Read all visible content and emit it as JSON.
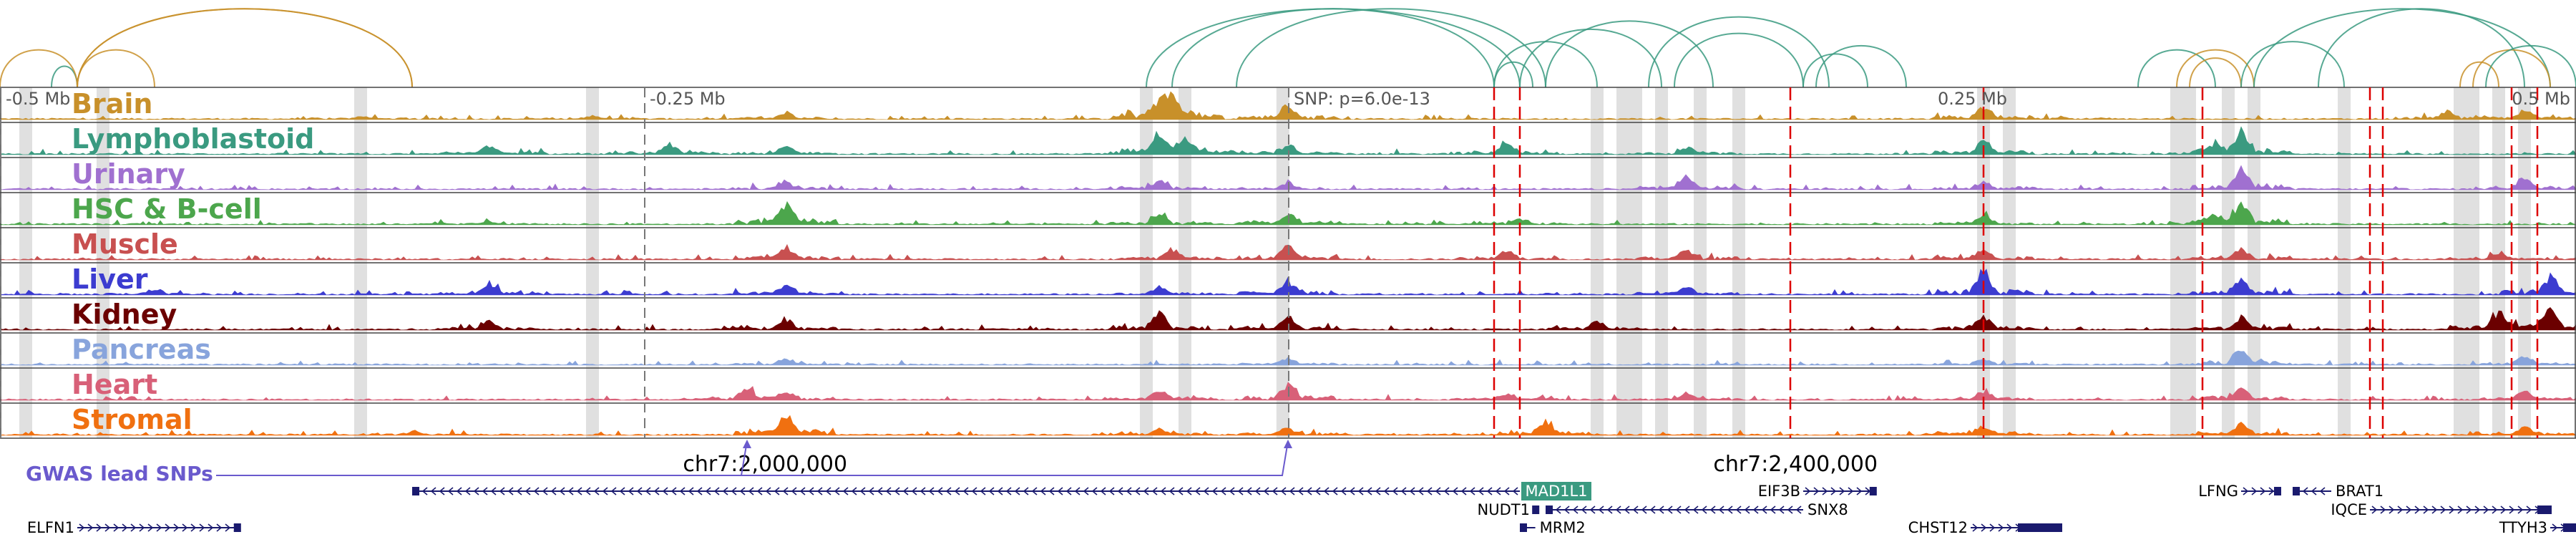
{
  "chart_data": {
    "type": "genome-browser",
    "x_axis": {
      "unit": "Mb relative to lead SNP",
      "range": [
        -0.5,
        0.5
      ],
      "ticks": [
        {
          "value": -0.5,
          "label": "-0.5 Mb"
        },
        {
          "value": -0.25,
          "label": "-0.25 Mb"
        },
        {
          "value": 0.0,
          "label": "SNP: p=6.0e-13"
        },
        {
          "value": 0.25,
          "label": "0.25 Mb"
        },
        {
          "value": 0.5,
          "label": "0.5 Mb"
        }
      ]
    },
    "coordinate_labels": [
      {
        "text": "chr7:2,000,000",
        "position": -0.203
      },
      {
        "text": "chr7:2,400,000",
        "position": 0.197
      }
    ],
    "tracks": [
      {
        "name": "Brain",
        "color": "#c8902a",
        "peaks": [
          [
            -0.36,
            0.12
          ],
          [
            -0.27,
            0.15
          ],
          [
            -0.195,
            0.3
          ],
          [
            -0.05,
            0.8
          ],
          [
            -0.045,
            1.0
          ],
          [
            0.0,
            0.7
          ],
          [
            0.27,
            0.6
          ],
          [
            0.3,
            0.1
          ],
          [
            0.45,
            0.35
          ],
          [
            0.48,
            0.4
          ]
        ]
      },
      {
        "name": "Lymphoblastoid",
        "color": "#3a9a80",
        "peaks": [
          [
            -0.31,
            0.4
          ],
          [
            -0.24,
            0.45
          ],
          [
            -0.195,
            0.35
          ],
          [
            -0.05,
            1.0
          ],
          [
            -0.04,
            0.6
          ],
          [
            0.0,
            0.45
          ],
          [
            0.085,
            0.5
          ],
          [
            0.155,
            0.35
          ],
          [
            0.27,
            0.6
          ],
          [
            0.36,
            0.4
          ],
          [
            0.37,
            1.0
          ]
        ]
      },
      {
        "name": "Urinary",
        "color": "#a070d0",
        "peaks": [
          [
            -0.195,
            0.35
          ],
          [
            -0.05,
            0.4
          ],
          [
            0.0,
            0.3
          ],
          [
            0.155,
            0.55
          ],
          [
            0.27,
            0.4
          ],
          [
            0.37,
            1.0
          ],
          [
            0.48,
            0.6
          ]
        ]
      },
      {
        "name": "HSC & B-cell",
        "color": "#4ca64c",
        "peaks": [
          [
            -0.31,
            0.15
          ],
          [
            -0.195,
            1.0
          ],
          [
            -0.05,
            0.45
          ],
          [
            0.0,
            0.5
          ],
          [
            0.09,
            0.25
          ],
          [
            0.27,
            0.35
          ],
          [
            0.36,
            0.3
          ],
          [
            0.37,
            1.0
          ]
        ]
      },
      {
        "name": "Muscle",
        "color": "#c85050",
        "peaks": [
          [
            -0.195,
            0.6
          ],
          [
            -0.045,
            0.5
          ],
          [
            0.0,
            0.7
          ],
          [
            0.085,
            0.4
          ],
          [
            0.155,
            0.5
          ],
          [
            0.27,
            0.45
          ],
          [
            0.37,
            0.5
          ],
          [
            0.47,
            0.3
          ]
        ]
      },
      {
        "name": "Liver",
        "color": "#3c3cd0",
        "peaks": [
          [
            -0.44,
            0.25
          ],
          [
            -0.31,
            0.55
          ],
          [
            -0.195,
            0.45
          ],
          [
            -0.05,
            0.35
          ],
          [
            0.0,
            0.6
          ],
          [
            0.155,
            0.35
          ],
          [
            0.27,
            1.0
          ],
          [
            0.37,
            0.65
          ],
          [
            0.49,
            0.9
          ]
        ]
      },
      {
        "name": "Kidney",
        "color": "#6b0000",
        "peaks": [
          [
            -0.31,
            0.35
          ],
          [
            -0.195,
            0.5
          ],
          [
            -0.05,
            0.75
          ],
          [
            0.0,
            0.6
          ],
          [
            0.12,
            0.4
          ],
          [
            0.27,
            0.6
          ],
          [
            0.37,
            0.55
          ],
          [
            0.47,
            0.75
          ],
          [
            0.49,
            0.9
          ]
        ]
      },
      {
        "name": "Pancreas",
        "color": "#88a4dc",
        "peaks": [
          [
            -0.195,
            0.25
          ],
          [
            0.0,
            0.3
          ],
          [
            0.27,
            0.25
          ],
          [
            0.37,
            0.8
          ],
          [
            0.48,
            0.45
          ]
        ]
      },
      {
        "name": "Heart",
        "color": "#d86078",
        "peaks": [
          [
            -0.21,
            0.45
          ],
          [
            -0.195,
            0.35
          ],
          [
            -0.05,
            0.5
          ],
          [
            0.0,
            0.7
          ],
          [
            0.085,
            0.3
          ],
          [
            0.155,
            0.3
          ],
          [
            0.27,
            0.4
          ],
          [
            0.37,
            0.5
          ],
          [
            0.48,
            0.4
          ]
        ]
      },
      {
        "name": "Stromal",
        "color": "#f07010",
        "peaks": [
          [
            -0.34,
            0.15
          ],
          [
            -0.195,
            1.0
          ],
          [
            -0.05,
            0.3
          ],
          [
            0.0,
            0.35
          ],
          [
            0.1,
            0.6
          ],
          [
            0.27,
            0.45
          ],
          [
            0.37,
            0.55
          ],
          [
            0.48,
            0.35
          ]
        ]
      }
    ],
    "grey_highlights": [
      -0.49,
      -0.46,
      -0.36,
      -0.27,
      -0.055,
      -0.04,
      -0.002,
      0.12,
      0.13,
      0.135,
      0.145,
      0.16,
      0.175,
      0.27,
      0.28,
      0.345,
      0.35,
      0.365,
      0.375,
      0.41,
      0.455,
      0.46,
      0.47,
      0.48
    ],
    "red_dashed_snps": [
      0.08,
      0.09,
      0.195,
      0.27,
      0.355,
      0.42,
      0.425,
      0.475,
      0.485
    ],
    "grey_dashed_snps": [
      -0.5,
      -0.25,
      0.0
    ],
    "gwas": {
      "label": "GWAS lead SNPs",
      "targets": [
        -0.21,
        0.0
      ]
    },
    "loops": {
      "top": [
        {
          "a": -0.48,
          "b": -0.47,
          "color": "#3a9a80"
        },
        {
          "a": -0.5,
          "b": -0.47,
          "color": "#c8902a"
        },
        {
          "a": -0.47,
          "b": -0.44,
          "color": "#c8902a"
        },
        {
          "a": -0.47,
          "b": -0.34,
          "color": "#c8902a"
        },
        {
          "a": -0.47,
          "b": -0.34,
          "color": "#c8902a"
        },
        {
          "a": -0.055,
          "b": 0.09,
          "color": "#3a9a80"
        },
        {
          "a": -0.045,
          "b": 0.08,
          "color": "#3a9a80"
        },
        {
          "a": -0.02,
          "b": 0.1,
          "color": "#3a9a80"
        },
        {
          "a": 0.08,
          "b": 0.095,
          "color": "#3a9a80"
        },
        {
          "a": 0.08,
          "b": 0.12,
          "color": "#3a9a80"
        },
        {
          "a": 0.09,
          "b": 0.145,
          "color": "#3a9a80"
        },
        {
          "a": 0.1,
          "b": 0.165,
          "color": "#3a9a80"
        },
        {
          "a": 0.14,
          "b": 0.21,
          "color": "#3a9a80"
        },
        {
          "a": 0.15,
          "b": 0.2,
          "color": "#3a9a80"
        },
        {
          "a": 0.2,
          "b": 0.225,
          "color": "#3a9a80"
        },
        {
          "a": 0.205,
          "b": 0.24,
          "color": "#3a9a80"
        },
        {
          "a": 0.33,
          "b": 0.36,
          "color": "#3a9a80"
        },
        {
          "a": 0.35,
          "b": 0.37,
          "color": "#c8902a"
        },
        {
          "a": 0.345,
          "b": 0.375,
          "color": "#c8902a"
        },
        {
          "a": 0.37,
          "b": 0.41,
          "color": "#3a9a80"
        },
        {
          "a": 0.375,
          "b": 0.49,
          "color": "#3a9a80"
        },
        {
          "a": 0.4,
          "b": 0.48,
          "color": "#3a9a80"
        },
        {
          "a": 0.455,
          "b": 0.47,
          "color": "#c8902a"
        },
        {
          "a": 0.46,
          "b": 0.49,
          "color": "#c8902a"
        },
        {
          "a": 0.465,
          "b": 0.5,
          "color": "#3a9a80"
        }
      ]
    }
  },
  "genes": [
    {
      "name": "ELFN1",
      "start": -0.47,
      "end": -0.407,
      "row": 2,
      "strand": "+",
      "label_side": "left"
    },
    {
      "name": "MAD1L1",
      "start": -0.34,
      "end": 0.09,
      "row": 0,
      "strand": "-",
      "label_side": "right-boxed"
    },
    {
      "name": "NUDT1",
      "start": 0.095,
      "end": 0.097,
      "row": 1,
      "strand": "+",
      "label_side": "left"
    },
    {
      "name": "MRM2",
      "start": 0.09,
      "end": 0.096,
      "row": 2,
      "strand": "-",
      "label_side": "right"
    },
    {
      "name": "SNX8",
      "start": 0.1,
      "end": 0.2,
      "row": 1,
      "strand": "-",
      "label_side": "right"
    },
    {
      "name": "EIF3B",
      "start": 0.2,
      "end": 0.228,
      "row": 0,
      "strand": "+",
      "label_side": "left"
    },
    {
      "name": "CHST12",
      "start": 0.265,
      "end": 0.3,
      "row": 2,
      "strand": "+",
      "label_side": "left"
    },
    {
      "name": "LFNG",
      "start": 0.37,
      "end": 0.385,
      "row": 0,
      "strand": "+",
      "label_side": "left"
    },
    {
      "name": "BRAT1",
      "start": 0.39,
      "end": 0.405,
      "row": 0,
      "strand": "-",
      "label_side": "right"
    },
    {
      "name": "IQCE",
      "start": 0.42,
      "end": 0.49,
      "row": 1,
      "strand": "+",
      "label_side": "left"
    },
    {
      "name": "TTYH3",
      "start": 0.49,
      "end": 0.5,
      "row": 2,
      "strand": "+",
      "label_side": "left"
    }
  ]
}
